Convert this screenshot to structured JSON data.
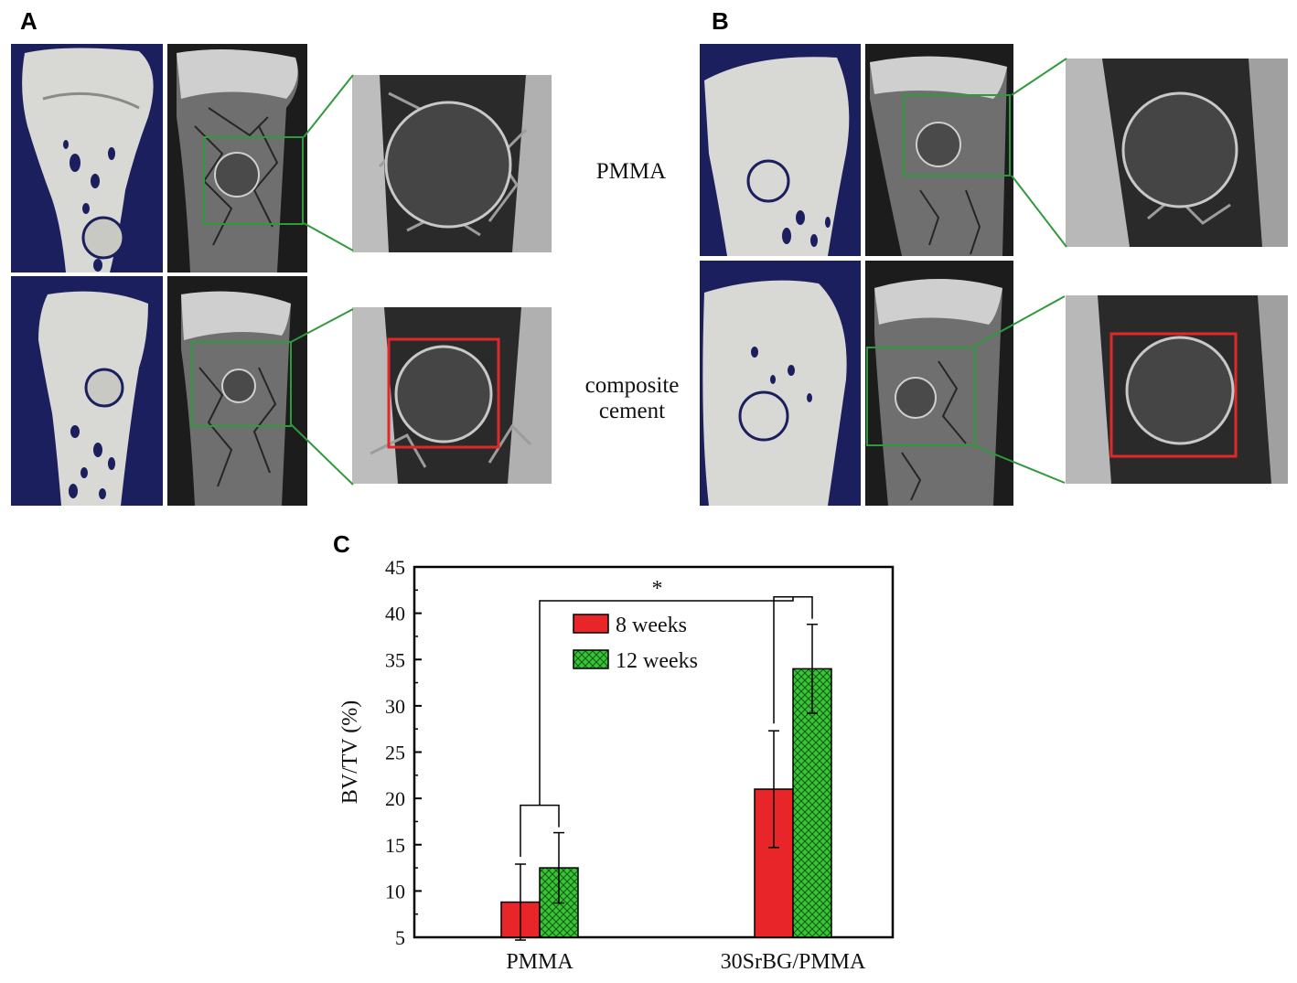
{
  "panels": {
    "a": {
      "letter": "A",
      "row1_label": "PMMA",
      "row2_label_line1": "composite",
      "row2_label_line2": "cement"
    },
    "b": {
      "letter": "B"
    },
    "c": {
      "letter": "C"
    }
  },
  "colors": {
    "scan_bg_blue": "#1b1f5e",
    "bone_white": "#d8d8d4",
    "ct_dark": "#1c1c1c",
    "zoom_box": "#2f9a3c",
    "roi_box": "#e02828",
    "bar_8_weeks": "#e8262a",
    "bar_12_weeks": "#3cc23a"
  },
  "chart_data": {
    "type": "bar",
    "categories": [
      "PMMA",
      "30SrBG/PMMA"
    ],
    "series": [
      {
        "name": "8 weeks",
        "values": [
          8.8,
          21.0
        ],
        "errors": [
          4.1,
          6.3
        ],
        "color": "#e8262a",
        "pattern": "solid"
      },
      {
        "name": "12 weeks",
        "values": [
          12.5,
          34.0
        ],
        "errors": [
          3.8,
          4.8
        ],
        "color": "#3cc23a",
        "pattern": "crosshatch"
      }
    ],
    "ylabel": "BV/TV (%)",
    "xlabel": "",
    "ylim": [
      5,
      45
    ],
    "yticks": [
      "5",
      "10",
      "15",
      "20",
      "25",
      "30",
      "35",
      "40",
      "45"
    ],
    "significance": "*",
    "legend_position": "upper-center",
    "grid": false
  }
}
